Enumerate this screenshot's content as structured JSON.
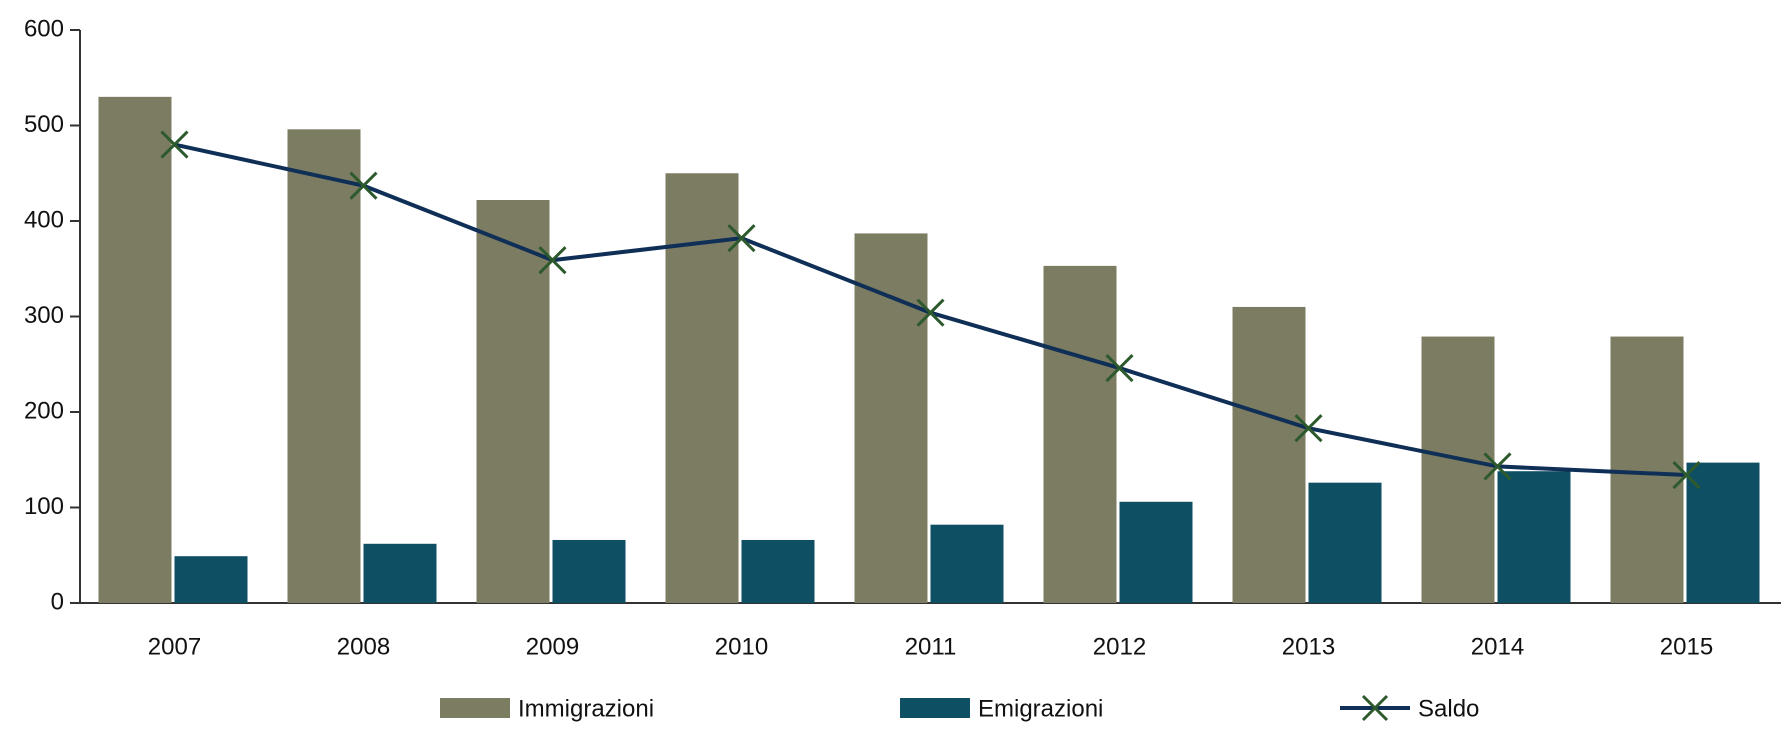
{
  "chart_data": {
    "type": "bar-line",
    "categories": [
      "2007",
      "2008",
      "2009",
      "2010",
      "2011",
      "2012",
      "2013",
      "2014",
      "2015"
    ],
    "series": [
      {
        "name": "Immigrazioni",
        "type": "bar",
        "color": "#7c7c62",
        "values": [
          530,
          496,
          422,
          450,
          387,
          353,
          310,
          279,
          279
        ]
      },
      {
        "name": "Emigrazioni",
        "type": "bar",
        "color": "#0e4f63",
        "values": [
          49,
          62,
          66,
          66,
          82,
          106,
          126,
          138,
          147
        ]
      },
      {
        "name": "Saldo",
        "type": "line",
        "color": "#0f2f57",
        "marker_color": "#2d5a2d",
        "values": [
          480,
          437,
          359,
          382,
          304,
          246,
          183,
          143,
          134
        ]
      }
    ],
    "ylim": [
      0,
      600
    ],
    "yticks": [
      0,
      100,
      200,
      300,
      400,
      500,
      600
    ],
    "grid": false,
    "legend": "bottom"
  }
}
